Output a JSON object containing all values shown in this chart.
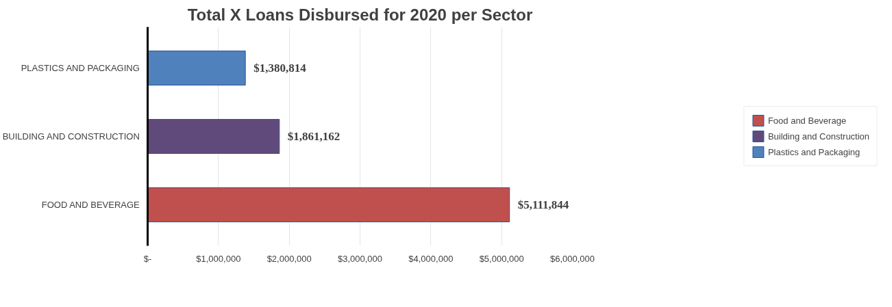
{
  "chart_data": {
    "type": "bar",
    "orientation": "horizontal",
    "title": "Total X Loans Disbursed for 2020 per Sector",
    "categories": [
      "PLASTICS AND PACKAGING",
      "BUILDING AND CONSTRUCTION",
      "FOOD AND BEVERAGE"
    ],
    "series": [
      {
        "name": "Food and Beverage",
        "color": "#c0504d",
        "values": [
          null,
          null,
          5111844
        ],
        "value_labels": [
          null,
          null,
          "$5,111,844"
        ]
      },
      {
        "name": "Building and Construction",
        "color": "#604a7b",
        "values": [
          null,
          1861162,
          null
        ],
        "value_labels": [
          null,
          "$1,861,162",
          null
        ]
      },
      {
        "name": "Plastics and Packaging",
        "color": "#4f81bd",
        "values": [
          1380814,
          null,
          null
        ],
        "value_labels": [
          "$1,380,814",
          null,
          null
        ]
      }
    ],
    "xlim": [
      0,
      6000000
    ],
    "xticks": [
      {
        "value": 0,
        "label": "$-"
      },
      {
        "value": 1000000,
        "label": "$1,000,000"
      },
      {
        "value": 2000000,
        "label": "$2,000,000"
      },
      {
        "value": 3000000,
        "label": "$3,000,000"
      },
      {
        "value": 4000000,
        "label": "$4,000,000"
      },
      {
        "value": 5000000,
        "label": "$5,000,000"
      },
      {
        "value": 6000000,
        "label": "$6,000,000"
      }
    ],
    "grid": "x",
    "legend": "right"
  }
}
